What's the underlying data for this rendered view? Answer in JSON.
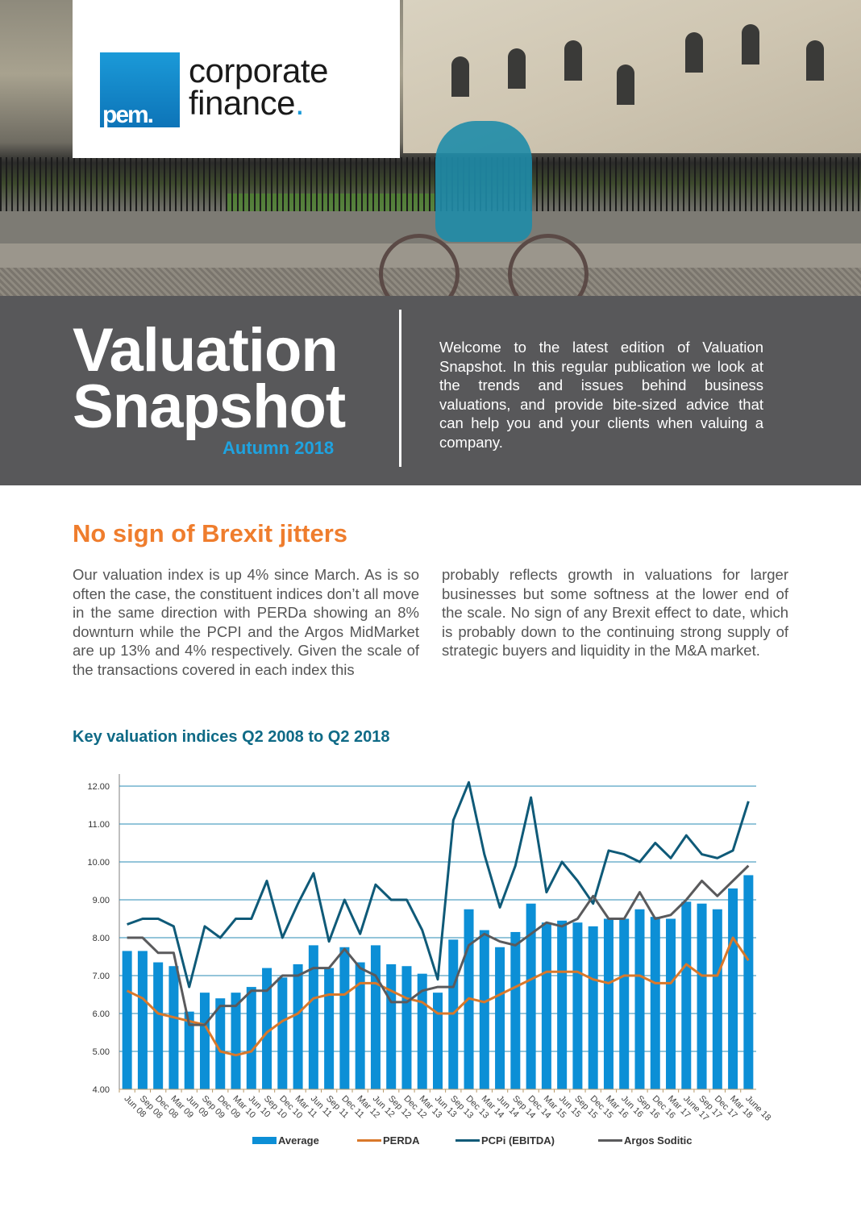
{
  "header": {
    "logo": {
      "mark": "pem.",
      "line1": "corporate",
      "line2": "finance",
      "dot": "."
    },
    "photo_alt": "cyclist-street-scene"
  },
  "banner": {
    "title_line1": "Valuation",
    "title_line2": "Snapshot",
    "subtitle": "Autumn 2018",
    "intro": "Welcome to the latest  edition of Valuation Snapshot.  In this regular publication we look at the trends and issues behind business valuations, and provide bite-sized advice that can help you and your clients when valuing a company."
  },
  "article": {
    "heading": "No sign of Brexit jitters",
    "col_left": "Our valuation index is up 4% since March. As is so often the case, the constituent indices don’t all move in the same direction with PERDa showing an 8% downturn while the PCPI and the Argos MidMarket are up 13% and 4% respectively. Given the scale of the transactions covered in each index this",
    "col_right": "probably reflects growth in valuations for larger businesses but some softness at the lower end of the scale. No sign of any Brexit effect to date, which is probably down to the continuing strong supply of strategic buyers and liquidity in the M&A market."
  },
  "colors": {
    "accent_blue": "#1fa3e0",
    "bar_blue": "#0c8fd6",
    "perda_orange": "#d9782a",
    "pcpi_teal": "#0f5a78",
    "argos_grey": "#5a5a5c",
    "heading_orange": "#ef7d2d",
    "banner_grey": "#58585a"
  },
  "chart_data": {
    "type": "bar",
    "title": "Key valuation indices Q2 2008 to Q2 2018",
    "xlabel": "",
    "ylabel": "",
    "ylim": [
      4,
      12
    ],
    "yticks": [
      "4.00",
      "5.00",
      "6.00",
      "7.00",
      "8.00",
      "9.00",
      "10.00",
      "11.00",
      "12.00"
    ],
    "grid": true,
    "legend_position": "bottom",
    "categories": [
      "Jun 08",
      "Sep 08",
      "Dec 08",
      "Mar 09",
      "Jun 09",
      "Sep 09",
      "Dec 09",
      "Mar 10",
      "Jun 10",
      "Sep 10",
      "Dec 10",
      "Mar 11",
      "Jun 11",
      "Sep 11",
      "Dec 11",
      "Mar 12",
      "Jun 12",
      "Sep 12",
      "Dec 12",
      "Mar 13",
      "Jun 13",
      "Sep 13",
      "Dec 13",
      "Mar 14",
      "Jun 14",
      "Sep 14",
      "Dec 14",
      "Mar 15",
      "Jun 15",
      "Sep 15",
      "Dec 15",
      "Mar 16",
      "Jun 16",
      "Sep 16",
      "Dec 16",
      "Mar 17",
      "June 17",
      "Sep 17",
      "Dec 17",
      "Mar 18",
      "June 18"
    ],
    "series": [
      {
        "name": "Average",
        "type": "bar",
        "color": "#0c8fd6",
        "values": [
          7.65,
          7.65,
          7.35,
          7.25,
          6.05,
          6.55,
          6.4,
          6.55,
          6.7,
          7.2,
          6.95,
          7.3,
          7.8,
          7.2,
          7.75,
          7.35,
          7.8,
          7.3,
          7.25,
          7.05,
          6.55,
          7.95,
          8.75,
          8.2,
          7.75,
          8.15,
          8.9,
          8.4,
          8.45,
          8.4,
          8.3,
          8.5,
          8.5,
          8.75,
          8.55,
          8.5,
          8.95,
          8.9,
          8.75,
          9.3,
          9.65
        ]
      },
      {
        "name": "PERDA",
        "type": "line",
        "color": "#d9782a",
        "values": [
          6.6,
          6.4,
          6.0,
          5.9,
          5.8,
          5.7,
          5.0,
          4.9,
          5.0,
          5.5,
          5.8,
          6.0,
          6.4,
          6.5,
          6.5,
          6.8,
          6.8,
          6.6,
          6.4,
          6.3,
          6.0,
          6.0,
          6.4,
          6.3,
          6.5,
          6.7,
          6.9,
          7.1,
          7.1,
          7.1,
          6.9,
          6.8,
          7.0,
          7.0,
          6.8,
          6.8,
          7.3,
          7.0,
          7.0,
          8.0,
          7.4
        ]
      },
      {
        "name": "PCPi (EBITDA)",
        "type": "line",
        "color": "#0f5a78",
        "values": [
          8.35,
          8.5,
          8.5,
          8.3,
          6.7,
          8.3,
          8.0,
          8.5,
          8.5,
          9.5,
          8.0,
          8.9,
          9.7,
          7.9,
          9.0,
          8.1,
          9.4,
          9.0,
          9.0,
          8.2,
          6.9,
          11.1,
          12.1,
          10.2,
          8.8,
          9.9,
          11.7,
          9.2,
          10.0,
          9.5,
          8.9,
          10.3,
          10.2,
          10.0,
          10.5,
          10.1,
          10.7,
          10.2,
          10.1,
          10.3,
          11.6
        ]
      },
      {
        "name": "Argos Soditic",
        "type": "line",
        "color": "#5a5a5c",
        "values": [
          8.0,
          8.0,
          7.6,
          7.6,
          5.7,
          5.7,
          6.2,
          6.2,
          6.6,
          6.6,
          7.0,
          7.0,
          7.2,
          7.2,
          7.7,
          7.2,
          7.0,
          6.3,
          6.3,
          6.6,
          6.7,
          6.7,
          7.8,
          8.1,
          7.9,
          7.8,
          8.1,
          8.4,
          8.3,
          8.5,
          9.1,
          8.5,
          8.5,
          9.2,
          8.5,
          8.6,
          9.0,
          9.5,
          9.1,
          9.5,
          9.9
        ]
      }
    ]
  }
}
